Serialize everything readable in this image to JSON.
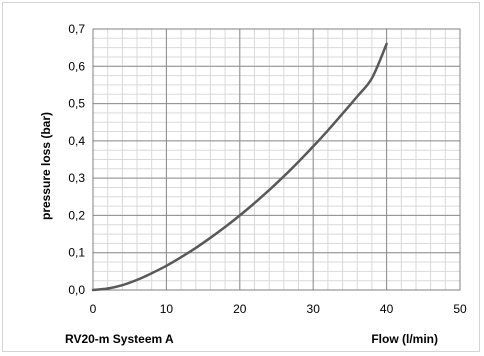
{
  "chart_data": {
    "type": "line",
    "title": "",
    "subtitle": "RV20-m Systeem A",
    "xlabel": "Flow (l/min)",
    "ylabel": "pressure loss (bar)",
    "xlim": [
      0,
      50
    ],
    "ylim": [
      0,
      0.7
    ],
    "x_ticks": [
      0,
      10,
      20,
      30,
      40,
      50
    ],
    "y_ticks": [
      0.0,
      0.1,
      0.2,
      0.3,
      0.4,
      0.5,
      0.6,
      0.7
    ],
    "x_tick_labels": [
      "0",
      "10",
      "20",
      "30",
      "40",
      "50"
    ],
    "y_tick_labels": [
      "0,0",
      "0,1",
      "0,2",
      "0,3",
      "0,4",
      "0,5",
      "0,6",
      "0,7"
    ],
    "grid": true,
    "legend": "none",
    "series": [
      {
        "x": [
          0,
          2,
          4,
          6,
          8,
          10,
          12,
          14,
          16,
          18,
          20,
          22,
          24,
          26,
          28,
          30,
          32,
          34,
          36,
          38,
          40
        ],
        "y": [
          0.0,
          0.004,
          0.013,
          0.027,
          0.045,
          0.065,
          0.088,
          0.113,
          0.14,
          0.169,
          0.2,
          0.233,
          0.268,
          0.305,
          0.344,
          0.385,
          0.428,
          0.473,
          0.519,
          0.568,
          0.66
        ],
        "color": "#595959"
      }
    ]
  }
}
